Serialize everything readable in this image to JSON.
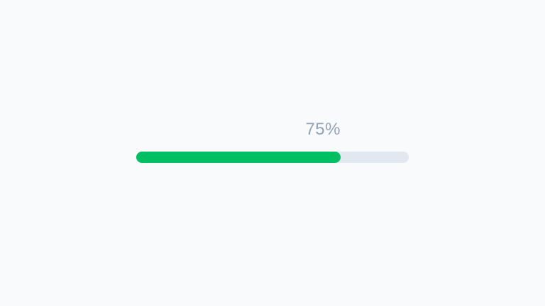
{
  "page": {
    "background_color": "#f8fafc"
  },
  "progress": {
    "label": "75%",
    "percent": 75,
    "fill_color": "#00bf63",
    "track_color": "#e2e8f0",
    "label_color": "#94a3b8"
  }
}
